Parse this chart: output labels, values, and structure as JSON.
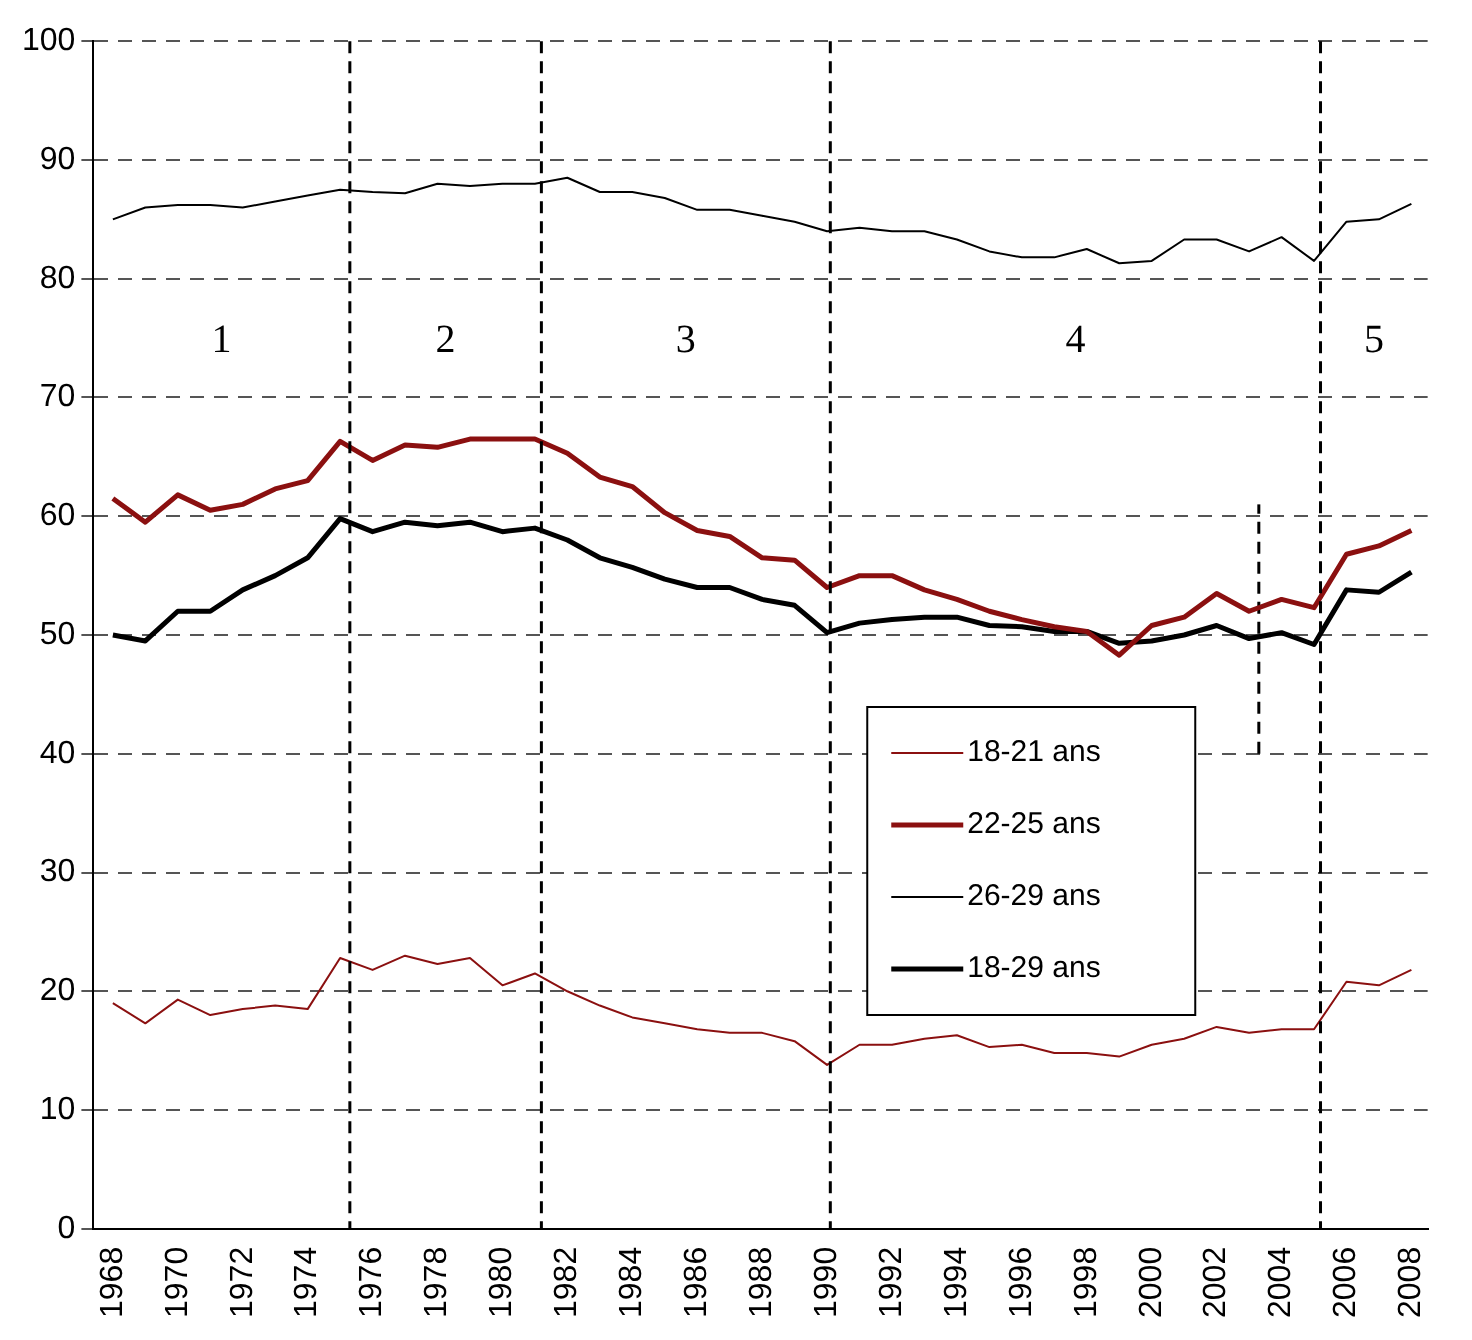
{
  "chart_data": {
    "type": "line",
    "x": [
      1968,
      1969,
      1970,
      1971,
      1972,
      1973,
      1974,
      1975,
      1976,
      1977,
      1978,
      1979,
      1980,
      1981,
      1982,
      1983,
      1984,
      1985,
      1986,
      1987,
      1988,
      1989,
      1990,
      1991,
      1992,
      1993,
      1994,
      1995,
      1996,
      1997,
      1998,
      1999,
      2000,
      2001,
      2002,
      2003,
      2004,
      2005,
      2006,
      2007,
      2008
    ],
    "xlim": [
      1967.4,
      2008.5
    ],
    "xticks": [
      1968,
      1970,
      1972,
      1974,
      1976,
      1978,
      1980,
      1982,
      1984,
      1986,
      1988,
      1990,
      1992,
      1994,
      1996,
      1998,
      2000,
      2002,
      2004,
      2006,
      2008
    ],
    "ylim": [
      0,
      100
    ],
    "yticks": [
      0,
      10,
      20,
      30,
      40,
      50,
      60,
      70,
      80,
      90,
      100
    ],
    "grid": "y",
    "legend": "bottom right",
    "series": [
      {
        "name": "18-21 ans",
        "color": "#8b1010",
        "values": [
          19,
          17.3,
          19.3,
          18,
          18.5,
          18.8,
          18.5,
          22.8,
          21.8,
          23,
          22.3,
          22.8,
          20.5,
          21.5,
          20,
          18.8,
          17.8,
          17.3,
          16.8,
          16.5,
          16.5,
          15.8,
          13.8,
          15.5,
          15.5,
          16,
          16.3,
          15.3,
          15.5,
          14.8,
          14.8,
          14.5,
          15.5,
          16,
          17,
          16.5,
          16.8,
          16.8,
          20.8,
          20.5,
          21.8
        ]
      },
      {
        "name": "22-25 ans",
        "color": "#8b1010",
        "values": [
          61.5,
          59.5,
          61.8,
          60.5,
          61,
          62.3,
          63,
          66.3,
          64.7,
          66,
          65.8,
          66.5,
          66.5,
          66.5,
          65.3,
          63.3,
          62.5,
          60.3,
          58.8,
          58.3,
          56.5,
          56.3,
          54,
          55,
          55,
          53.8,
          53,
          52,
          51.3,
          50.7,
          50.3,
          48.3,
          50.8,
          51.5,
          53.5,
          52,
          53,
          52.3,
          56.8,
          57.5,
          58.8
        ]
      },
      {
        "name": "26-29 ans",
        "color": "#000000",
        "values": [
          85,
          86,
          86.2,
          86.2,
          86,
          86.5,
          87,
          87.5,
          87.3,
          87.2,
          88,
          87.8,
          88,
          88,
          88.5,
          87.3,
          87.3,
          86.8,
          85.8,
          85.8,
          85.3,
          84.8,
          84,
          84.3,
          84,
          84,
          83.3,
          82.3,
          81.8,
          81.8,
          82.5,
          81.3,
          81.5,
          83.3,
          83.3,
          82.3,
          83.5,
          81.5,
          84.8,
          85,
          86.3
        ]
      },
      {
        "name": "18-29 ans",
        "color": "#000000",
        "values": [
          50,
          49.5,
          52,
          52,
          53.8,
          55,
          56.5,
          59.8,
          58.7,
          59.5,
          59.2,
          59.5,
          58.7,
          59,
          58,
          56.5,
          55.7,
          54.7,
          54,
          54,
          53,
          52.5,
          50.2,
          51,
          51.3,
          51.5,
          51.5,
          50.8,
          50.7,
          50.3,
          50.3,
          49.3,
          49.5,
          50,
          50.8,
          49.7,
          50.2,
          49.2,
          53.8,
          53.6,
          55.3
        ]
      },
      {
        "type": "line",
        "color": "#000000",
        "line_style": "dashed",
        "x": [
          2003.3,
          2003.3
        ],
        "values": [
          40,
          61
        ]
      }
    ],
    "ref_lines": [
      {
        "axis": "x",
        "value": 1975.3,
        "color": "#000000",
        "line_style": "dashed"
      },
      {
        "axis": "x",
        "value": 1981.2,
        "color": "#000000",
        "line_style": "dashed"
      },
      {
        "axis": "x",
        "value": 1990.1,
        "color": "#000000",
        "line_style": "dashed"
      },
      {
        "axis": "x",
        "value": 2005.2,
        "color": "#000000",
        "line_style": "dashed"
      }
    ],
    "annotations": [
      "1",
      "2",
      "3",
      "4",
      "5"
    ]
  }
}
